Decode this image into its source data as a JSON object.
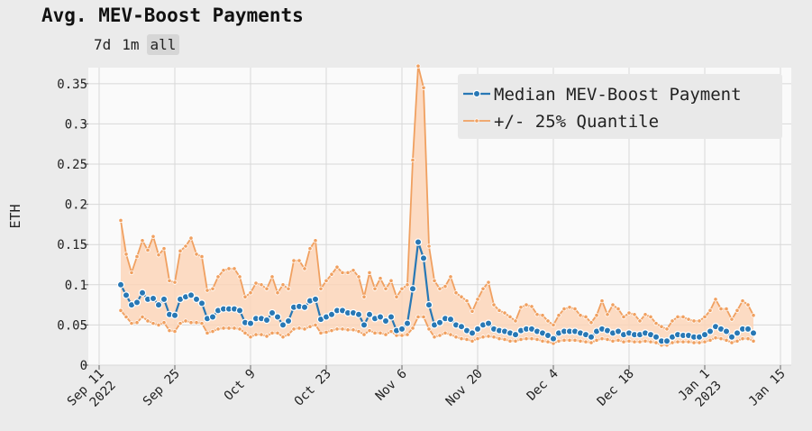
{
  "title": "Avg. MEV-Boost Payments",
  "range_buttons": [
    {
      "label": "7d",
      "active": false
    },
    {
      "label": "1m",
      "active": false
    },
    {
      "label": "all",
      "active": true
    }
  ],
  "colors": {
    "median": "#2878b5",
    "quantile": "#f0a060",
    "band_fill": "#fcd5b8",
    "plot_bg": "#fafafa",
    "grid": "#d8d8d8"
  },
  "chart_data": {
    "type": "line",
    "ylabel": "ETH",
    "ylim": [
      0,
      0.37
    ],
    "yticks": [
      0,
      0.05,
      0.1,
      0.15,
      0.2,
      0.25,
      0.3,
      0.35
    ],
    "ytick_labels": [
      "0",
      "0.05",
      "0.1",
      "0.15",
      "0.2",
      "0.25",
      "0.3",
      "0.35"
    ],
    "xlim": [
      "2022-09-09",
      "2023-01-17"
    ],
    "xticks": [
      "2022-09-11",
      "2022-09-25",
      "2022-10-09",
      "2022-10-23",
      "2022-11-06",
      "2022-11-20",
      "2022-12-04",
      "2022-12-18",
      "2023-01-01",
      "2023-01-15"
    ],
    "xtick_labels": [
      [
        "Sep 11",
        "2022"
      ],
      [
        "Sep 25"
      ],
      [
        "Oct 9"
      ],
      [
        "Oct 23"
      ],
      [
        "Nov 6"
      ],
      [
        "Nov 20"
      ],
      [
        "Dec 4"
      ],
      [
        "Dec 18"
      ],
      [
        "Jan 1",
        "2023"
      ],
      [
        "Jan 15"
      ]
    ],
    "grid": true,
    "legend_position": "top-right",
    "start_date": "2022-09-15",
    "series": [
      {
        "name": "Median MEV-Boost Payment",
        "values": [
          0.1,
          0.087,
          0.075,
          0.078,
          0.09,
          0.082,
          0.083,
          0.075,
          0.082,
          0.063,
          0.062,
          0.082,
          0.085,
          0.087,
          0.082,
          0.077,
          0.058,
          0.06,
          0.068,
          0.07,
          0.07,
          0.07,
          0.068,
          0.053,
          0.052,
          0.058,
          0.058,
          0.056,
          0.065,
          0.06,
          0.05,
          0.055,
          0.072,
          0.073,
          0.072,
          0.08,
          0.082,
          0.057,
          0.06,
          0.063,
          0.068,
          0.068,
          0.065,
          0.065,
          0.063,
          0.05,
          0.063,
          0.058,
          0.06,
          0.055,
          0.06,
          0.043,
          0.045,
          0.052,
          0.095,
          0.153,
          0.133,
          0.075,
          0.05,
          0.053,
          0.058,
          0.057,
          0.05,
          0.048,
          0.043,
          0.04,
          0.045,
          0.05,
          0.052,
          0.045,
          0.043,
          0.042,
          0.04,
          0.038,
          0.043,
          0.045,
          0.045,
          0.042,
          0.04,
          0.037,
          0.033,
          0.04,
          0.042,
          0.042,
          0.042,
          0.04,
          0.038,
          0.035,
          0.042,
          0.045,
          0.043,
          0.04,
          0.042,
          0.038,
          0.04,
          0.038,
          0.038,
          0.04,
          0.038,
          0.035,
          0.03,
          0.03,
          0.035,
          0.038,
          0.037,
          0.037,
          0.035,
          0.035,
          0.038,
          0.042,
          0.048,
          0.045,
          0.042,
          0.035,
          0.04,
          0.045,
          0.045,
          0.04
        ]
      },
      {
        "name": "+/- 25% Quantile",
        "upper": [
          0.18,
          0.138,
          0.115,
          0.135,
          0.155,
          0.143,
          0.16,
          0.137,
          0.145,
          0.105,
          0.103,
          0.142,
          0.148,
          0.158,
          0.138,
          0.135,
          0.093,
          0.095,
          0.11,
          0.118,
          0.12,
          0.12,
          0.11,
          0.085,
          0.09,
          0.102,
          0.1,
          0.095,
          0.11,
          0.09,
          0.1,
          0.095,
          0.13,
          0.13,
          0.12,
          0.145,
          0.155,
          0.095,
          0.105,
          0.113,
          0.122,
          0.115,
          0.115,
          0.118,
          0.11,
          0.085,
          0.115,
          0.095,
          0.108,
          0.095,
          0.105,
          0.085,
          0.095,
          0.1,
          0.255,
          0.372,
          0.345,
          0.148,
          0.105,
          0.095,
          0.098,
          0.11,
          0.09,
          0.085,
          0.08,
          0.067,
          0.082,
          0.095,
          0.103,
          0.075,
          0.068,
          0.065,
          0.06,
          0.055,
          0.072,
          0.075,
          0.073,
          0.063,
          0.062,
          0.055,
          0.05,
          0.062,
          0.07,
          0.072,
          0.07,
          0.062,
          0.06,
          0.053,
          0.062,
          0.08,
          0.063,
          0.075,
          0.07,
          0.06,
          0.065,
          0.063,
          0.055,
          0.063,
          0.06,
          0.052,
          0.048,
          0.045,
          0.055,
          0.06,
          0.06,
          0.057,
          0.055,
          0.055,
          0.06,
          0.068,
          0.082,
          0.07,
          0.07,
          0.057,
          0.068,
          0.08,
          0.075,
          0.062
        ],
        "lower": [
          0.068,
          0.06,
          0.052,
          0.053,
          0.06,
          0.055,
          0.052,
          0.05,
          0.053,
          0.043,
          0.042,
          0.052,
          0.055,
          0.053,
          0.053,
          0.052,
          0.04,
          0.042,
          0.045,
          0.046,
          0.046,
          0.046,
          0.045,
          0.04,
          0.035,
          0.038,
          0.038,
          0.036,
          0.04,
          0.04,
          0.035,
          0.038,
          0.045,
          0.046,
          0.045,
          0.048,
          0.05,
          0.04,
          0.041,
          0.043,
          0.045,
          0.045,
          0.044,
          0.044,
          0.042,
          0.038,
          0.043,
          0.04,
          0.04,
          0.038,
          0.042,
          0.037,
          0.037,
          0.038,
          0.046,
          0.06,
          0.06,
          0.045,
          0.035,
          0.037,
          0.04,
          0.038,
          0.035,
          0.033,
          0.032,
          0.03,
          0.033,
          0.035,
          0.036,
          0.035,
          0.033,
          0.032,
          0.03,
          0.03,
          0.032,
          0.033,
          0.033,
          0.032,
          0.03,
          0.029,
          0.027,
          0.03,
          0.031,
          0.031,
          0.031,
          0.03,
          0.029,
          0.028,
          0.031,
          0.033,
          0.032,
          0.03,
          0.031,
          0.029,
          0.03,
          0.029,
          0.029,
          0.03,
          0.029,
          0.028,
          0.025,
          0.025,
          0.028,
          0.029,
          0.029,
          0.029,
          0.028,
          0.028,
          0.029,
          0.031,
          0.034,
          0.033,
          0.031,
          0.028,
          0.03,
          0.033,
          0.033,
          0.03
        ]
      }
    ]
  }
}
